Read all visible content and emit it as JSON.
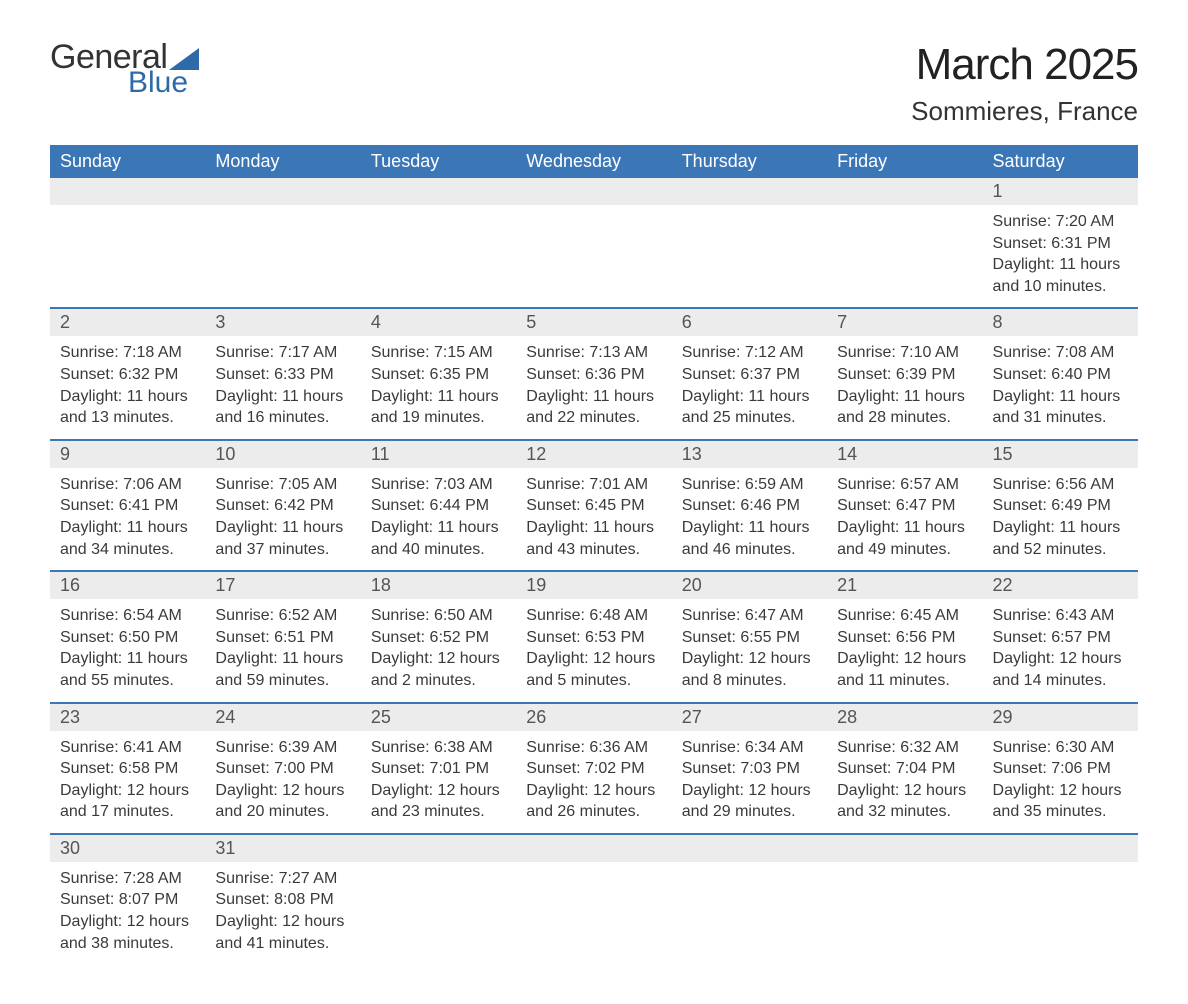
{
  "brand": {
    "word1": "General",
    "word2": "Blue",
    "accent_color": "#2f6aa8"
  },
  "title": {
    "month": "March 2025",
    "location": "Sommieres, France"
  },
  "colors": {
    "header_bg": "#3b76b6",
    "header_text": "#ffffff",
    "daynum_bg": "#ececec",
    "row_divider": "#3b76b6",
    "text": "#3a3a3a",
    "background": "#ffffff"
  },
  "typography": {
    "title_fontsize": 44,
    "location_fontsize": 26,
    "dayheader_fontsize": 18,
    "cell_fontsize": 16
  },
  "day_headers": [
    "Sunday",
    "Monday",
    "Tuesday",
    "Wednesday",
    "Thursday",
    "Friday",
    "Saturday"
  ],
  "weeks": [
    [
      null,
      null,
      null,
      null,
      null,
      null,
      {
        "n": "1",
        "sr": "Sunrise: 7:20 AM",
        "ss": "Sunset: 6:31 PM",
        "d1": "Daylight: 11 hours",
        "d2": "and 10 minutes."
      }
    ],
    [
      {
        "n": "2",
        "sr": "Sunrise: 7:18 AM",
        "ss": "Sunset: 6:32 PM",
        "d1": "Daylight: 11 hours",
        "d2": "and 13 minutes."
      },
      {
        "n": "3",
        "sr": "Sunrise: 7:17 AM",
        "ss": "Sunset: 6:33 PM",
        "d1": "Daylight: 11 hours",
        "d2": "and 16 minutes."
      },
      {
        "n": "4",
        "sr": "Sunrise: 7:15 AM",
        "ss": "Sunset: 6:35 PM",
        "d1": "Daylight: 11 hours",
        "d2": "and 19 minutes."
      },
      {
        "n": "5",
        "sr": "Sunrise: 7:13 AM",
        "ss": "Sunset: 6:36 PM",
        "d1": "Daylight: 11 hours",
        "d2": "and 22 minutes."
      },
      {
        "n": "6",
        "sr": "Sunrise: 7:12 AM",
        "ss": "Sunset: 6:37 PM",
        "d1": "Daylight: 11 hours",
        "d2": "and 25 minutes."
      },
      {
        "n": "7",
        "sr": "Sunrise: 7:10 AM",
        "ss": "Sunset: 6:39 PM",
        "d1": "Daylight: 11 hours",
        "d2": "and 28 minutes."
      },
      {
        "n": "8",
        "sr": "Sunrise: 7:08 AM",
        "ss": "Sunset: 6:40 PM",
        "d1": "Daylight: 11 hours",
        "d2": "and 31 minutes."
      }
    ],
    [
      {
        "n": "9",
        "sr": "Sunrise: 7:06 AM",
        "ss": "Sunset: 6:41 PM",
        "d1": "Daylight: 11 hours",
        "d2": "and 34 minutes."
      },
      {
        "n": "10",
        "sr": "Sunrise: 7:05 AM",
        "ss": "Sunset: 6:42 PM",
        "d1": "Daylight: 11 hours",
        "d2": "and 37 minutes."
      },
      {
        "n": "11",
        "sr": "Sunrise: 7:03 AM",
        "ss": "Sunset: 6:44 PM",
        "d1": "Daylight: 11 hours",
        "d2": "and 40 minutes."
      },
      {
        "n": "12",
        "sr": "Sunrise: 7:01 AM",
        "ss": "Sunset: 6:45 PM",
        "d1": "Daylight: 11 hours",
        "d2": "and 43 minutes."
      },
      {
        "n": "13",
        "sr": "Sunrise: 6:59 AM",
        "ss": "Sunset: 6:46 PM",
        "d1": "Daylight: 11 hours",
        "d2": "and 46 minutes."
      },
      {
        "n": "14",
        "sr": "Sunrise: 6:57 AM",
        "ss": "Sunset: 6:47 PM",
        "d1": "Daylight: 11 hours",
        "d2": "and 49 minutes."
      },
      {
        "n": "15",
        "sr": "Sunrise: 6:56 AM",
        "ss": "Sunset: 6:49 PM",
        "d1": "Daylight: 11 hours",
        "d2": "and 52 minutes."
      }
    ],
    [
      {
        "n": "16",
        "sr": "Sunrise: 6:54 AM",
        "ss": "Sunset: 6:50 PM",
        "d1": "Daylight: 11 hours",
        "d2": "and 55 minutes."
      },
      {
        "n": "17",
        "sr": "Sunrise: 6:52 AM",
        "ss": "Sunset: 6:51 PM",
        "d1": "Daylight: 11 hours",
        "d2": "and 59 minutes."
      },
      {
        "n": "18",
        "sr": "Sunrise: 6:50 AM",
        "ss": "Sunset: 6:52 PM",
        "d1": "Daylight: 12 hours",
        "d2": "and 2 minutes."
      },
      {
        "n": "19",
        "sr": "Sunrise: 6:48 AM",
        "ss": "Sunset: 6:53 PM",
        "d1": "Daylight: 12 hours",
        "d2": "and 5 minutes."
      },
      {
        "n": "20",
        "sr": "Sunrise: 6:47 AM",
        "ss": "Sunset: 6:55 PM",
        "d1": "Daylight: 12 hours",
        "d2": "and 8 minutes."
      },
      {
        "n": "21",
        "sr": "Sunrise: 6:45 AM",
        "ss": "Sunset: 6:56 PM",
        "d1": "Daylight: 12 hours",
        "d2": "and 11 minutes."
      },
      {
        "n": "22",
        "sr": "Sunrise: 6:43 AM",
        "ss": "Sunset: 6:57 PM",
        "d1": "Daylight: 12 hours",
        "d2": "and 14 minutes."
      }
    ],
    [
      {
        "n": "23",
        "sr": "Sunrise: 6:41 AM",
        "ss": "Sunset: 6:58 PM",
        "d1": "Daylight: 12 hours",
        "d2": "and 17 minutes."
      },
      {
        "n": "24",
        "sr": "Sunrise: 6:39 AM",
        "ss": "Sunset: 7:00 PM",
        "d1": "Daylight: 12 hours",
        "d2": "and 20 minutes."
      },
      {
        "n": "25",
        "sr": "Sunrise: 6:38 AM",
        "ss": "Sunset: 7:01 PM",
        "d1": "Daylight: 12 hours",
        "d2": "and 23 minutes."
      },
      {
        "n": "26",
        "sr": "Sunrise: 6:36 AM",
        "ss": "Sunset: 7:02 PM",
        "d1": "Daylight: 12 hours",
        "d2": "and 26 minutes."
      },
      {
        "n": "27",
        "sr": "Sunrise: 6:34 AM",
        "ss": "Sunset: 7:03 PM",
        "d1": "Daylight: 12 hours",
        "d2": "and 29 minutes."
      },
      {
        "n": "28",
        "sr": "Sunrise: 6:32 AM",
        "ss": "Sunset: 7:04 PM",
        "d1": "Daylight: 12 hours",
        "d2": "and 32 minutes."
      },
      {
        "n": "29",
        "sr": "Sunrise: 6:30 AM",
        "ss": "Sunset: 7:06 PM",
        "d1": "Daylight: 12 hours",
        "d2": "and 35 minutes."
      }
    ],
    [
      {
        "n": "30",
        "sr": "Sunrise: 7:28 AM",
        "ss": "Sunset: 8:07 PM",
        "d1": "Daylight: 12 hours",
        "d2": "and 38 minutes."
      },
      {
        "n": "31",
        "sr": "Sunrise: 7:27 AM",
        "ss": "Sunset: 8:08 PM",
        "d1": "Daylight: 12 hours",
        "d2": "and 41 minutes."
      },
      null,
      null,
      null,
      null,
      null
    ]
  ]
}
